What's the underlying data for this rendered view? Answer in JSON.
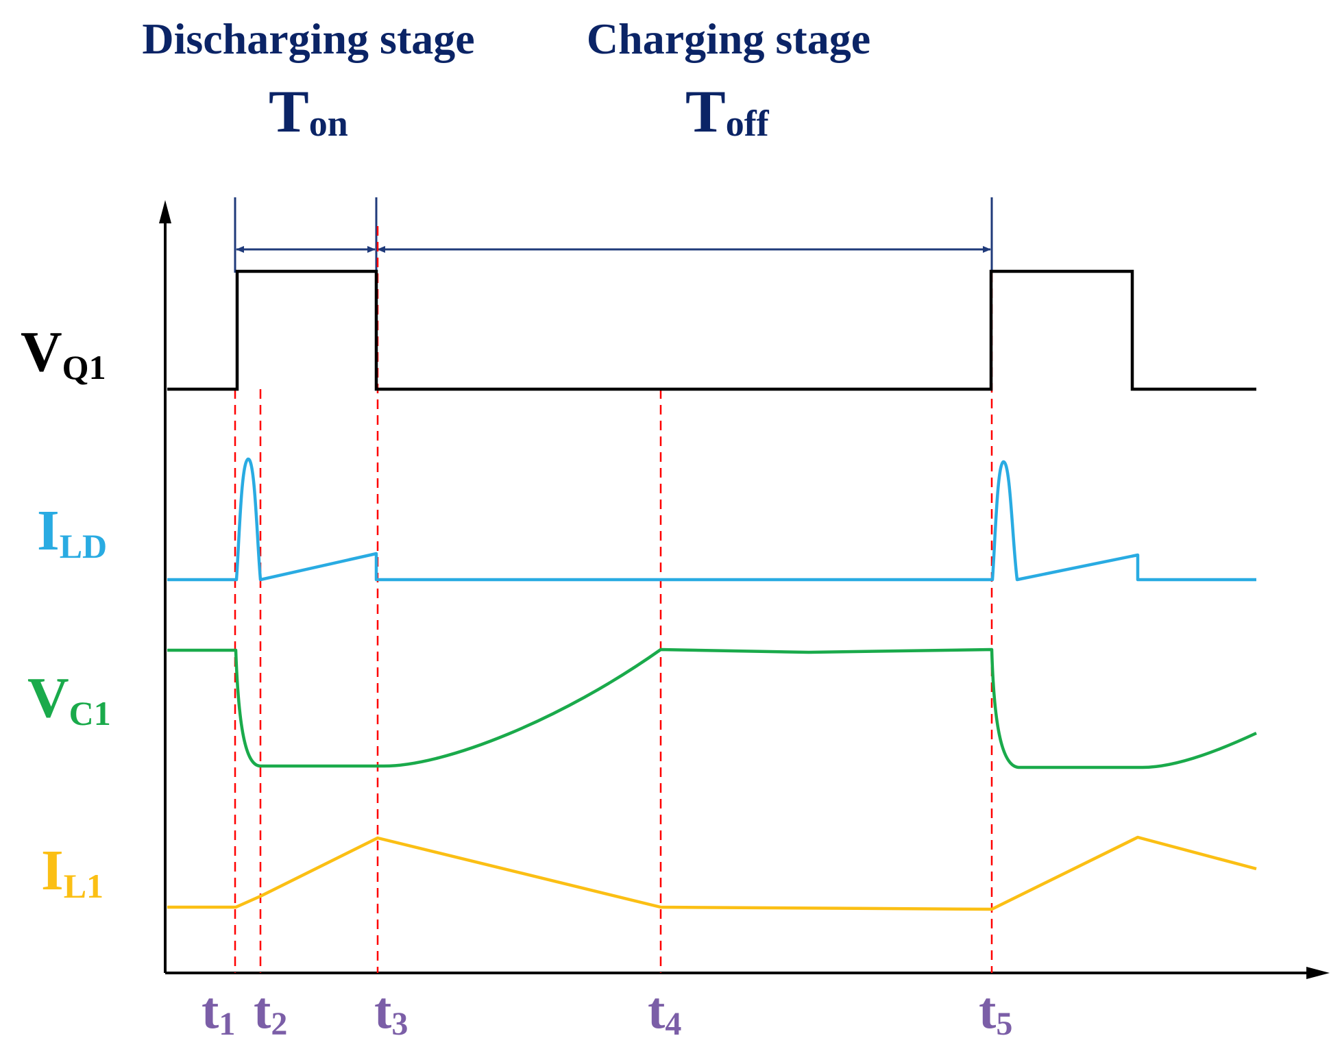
{
  "colors": {
    "axis": "#000000",
    "stage_text": "#0b2466",
    "dimension": "#1f3a7a",
    "marker": "#ff0000",
    "vq1": "#000000",
    "ild": "#29abe2",
    "vc1": "#1aaa4b",
    "il1": "#fbbf14",
    "time_label": "#7b5ea7"
  },
  "header": {
    "discharging_label": "Discharging stage",
    "charging_label": "Charging stage"
  },
  "periods": {
    "ton": {
      "main": "T",
      "sub": "on"
    },
    "toff": {
      "main": "T",
      "sub": "off"
    }
  },
  "signals": {
    "vq1": {
      "main": "V",
      "sub": "Q1"
    },
    "ild": {
      "main": "I",
      "sub": "LD"
    },
    "vc1": {
      "main": "V",
      "sub": "C1"
    },
    "il1": {
      "main": "I",
      "sub": "L1"
    }
  },
  "time_markers": [
    {
      "main": "t",
      "sub": "1"
    },
    {
      "main": "t",
      "sub": "2"
    },
    {
      "main": "t",
      "sub": "3"
    },
    {
      "main": "t",
      "sub": "4"
    },
    {
      "main": "t",
      "sub": "5"
    }
  ]
}
